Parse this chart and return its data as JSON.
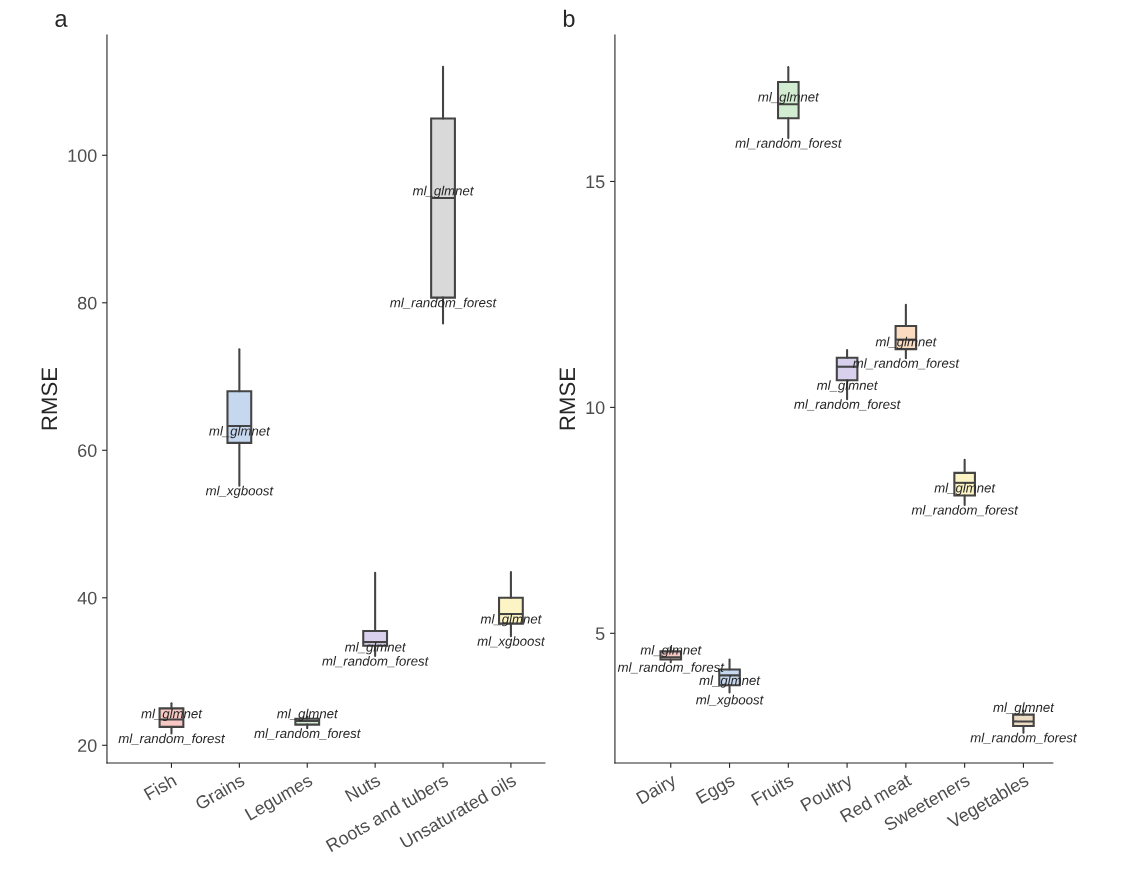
{
  "chart_data": [
    {
      "type": "box",
      "title": "a",
      "ylabel": "RMSE",
      "categories": [
        "Fish",
        "Grains",
        "Legumes",
        "Nuts",
        "Roots and tubers",
        "Unsaturated oils"
      ],
      "colors": [
        "#f8c8c4",
        "#c6d8ef",
        "#d2ecd2",
        "#d8d0ec",
        "#d9d9d9",
        "#fcf4c4"
      ],
      "boxes": [
        {
          "low": 21.6,
          "q1": 22.5,
          "median": 23.5,
          "q3": 25.0,
          "high": 25.7
        },
        {
          "low": 55.2,
          "q1": 61.0,
          "median": 63.3,
          "q3": 68.0,
          "high": 73.7
        },
        {
          "low": 22.3,
          "q1": 22.8,
          "median": 23.3,
          "q3": 23.6,
          "high": 23.9
        },
        {
          "low": 32.1,
          "q1": 33.5,
          "median": 34.0,
          "q3": 35.5,
          "high": 43.4
        },
        {
          "low": 77.2,
          "q1": 80.7,
          "median": 94.2,
          "q3": 105.0,
          "high": 112.0
        },
        {
          "low": 34.8,
          "q1": 36.5,
          "median": 37.8,
          "q3": 40.0,
          "high": 43.5
        }
      ],
      "ylim": [
        17.6,
        116.3
      ],
      "yticks": [
        20,
        40,
        60,
        80,
        100
      ],
      "grid": false,
      "annotations": [
        {
          "text": "ml_glmnet",
          "x": "Fish",
          "y": 23.3
        },
        {
          "text": "ml_random_forest",
          "x": "Fish",
          "y": 21.6
        },
        {
          "text": "ml_glmnet",
          "x": "Grains",
          "y": 63.3
        },
        {
          "text": "ml_xgboost",
          "x": "Grains",
          "y": 55.2
        },
        {
          "text": "ml_glmnet",
          "x": "Legumes",
          "y": 23.3
        },
        {
          "text": "ml_random_forest",
          "x": "Legumes",
          "y": 22.3
        },
        {
          "text": "ml_glmnet",
          "x": "Nuts",
          "y": 34.0
        },
        {
          "text": "ml_random_forest",
          "x": "Nuts",
          "y": 32.1
        },
        {
          "text": "ml_glmnet",
          "x": "Roots and tubers",
          "y": 94.2
        },
        {
          "text": "ml_random_forest",
          "x": "Roots and tubers",
          "y": 80.7
        },
        {
          "text": "ml_glmnet",
          "x": "Unsaturated oils",
          "y": 37.8
        },
        {
          "text": "ml_xgboost",
          "x": "Unsaturated oils",
          "y": 34.8
        }
      ]
    },
    {
      "type": "box",
      "title": "b",
      "ylabel": "RMSE",
      "categories": [
        "Dairy",
        "Eggs",
        "Fruits",
        "Poultry",
        "Red meat",
        "Sweeteners",
        "Vegetables"
      ],
      "colors": [
        "#f8c8c4",
        "#c6d8ef",
        "#d2ecd2",
        "#d8d0ec",
        "#fcdcc0",
        "#fcf4c4",
        "#ecdcc4"
      ],
      "boxes": [
        {
          "low": 4.36,
          "q1": 4.42,
          "median": 4.47,
          "q3": 4.6,
          "high": 4.69
        },
        {
          "low": 3.69,
          "q1": 3.85,
          "median": 4.07,
          "q3": 4.2,
          "high": 4.42
        },
        {
          "low": 15.96,
          "q1": 16.4,
          "median": 16.71,
          "q3": 17.2,
          "high": 17.53
        },
        {
          "low": 10.18,
          "q1": 10.6,
          "median": 10.9,
          "q3": 11.1,
          "high": 11.27
        },
        {
          "low": 11.09,
          "q1": 11.29,
          "median": 11.5,
          "q3": 11.8,
          "high": 12.27
        },
        {
          "low": 7.84,
          "q1": 8.05,
          "median": 8.33,
          "q3": 8.55,
          "high": 8.84
        },
        {
          "low": 2.8,
          "q1": 2.95,
          "median": 3.05,
          "q3": 3.2,
          "high": 3.29
        }
      ],
      "ylim": [
        2.13,
        18.24
      ],
      "yticks": [
        5,
        10,
        15
      ],
      "grid": false,
      "annotations": [
        {
          "text": "ml_glmnet",
          "x": "Dairy",
          "y": 4.47
        },
        {
          "text": "ml_random_forest",
          "x": "Dairy",
          "y": 4.36
        },
        {
          "text": "ml_glmnet",
          "x": "Eggs",
          "y": 4.07
        },
        {
          "text": "ml_xgboost",
          "x": "Eggs",
          "y": 3.64
        },
        {
          "text": "ml_glmnet",
          "x": "Fruits",
          "y": 16.71
        },
        {
          "text": "ml_random_forest",
          "x": "Fruits",
          "y": 15.96
        },
        {
          "text": "ml_glmnet",
          "x": "Poultry",
          "y": 10.6
        },
        {
          "text": "ml_random_forest",
          "x": "Poultry",
          "y": 10.18
        },
        {
          "text": "ml_glmnet",
          "x": "Red meat",
          "y": 11.29
        },
        {
          "text": "ml_random_forest",
          "x": "Red meat",
          "y": 11.09
        },
        {
          "text": "ml_glmnet",
          "x": "Sweeteners",
          "y": 8.33
        },
        {
          "text": "ml_random_forest",
          "x": "Sweeteners",
          "y": 7.84
        },
        {
          "text": "ml_glmnet",
          "x": "Vegetables",
          "y": 3.2
        },
        {
          "text": "ml_random_forest",
          "x": "Vegetables",
          "y": 2.8
        }
      ]
    }
  ]
}
